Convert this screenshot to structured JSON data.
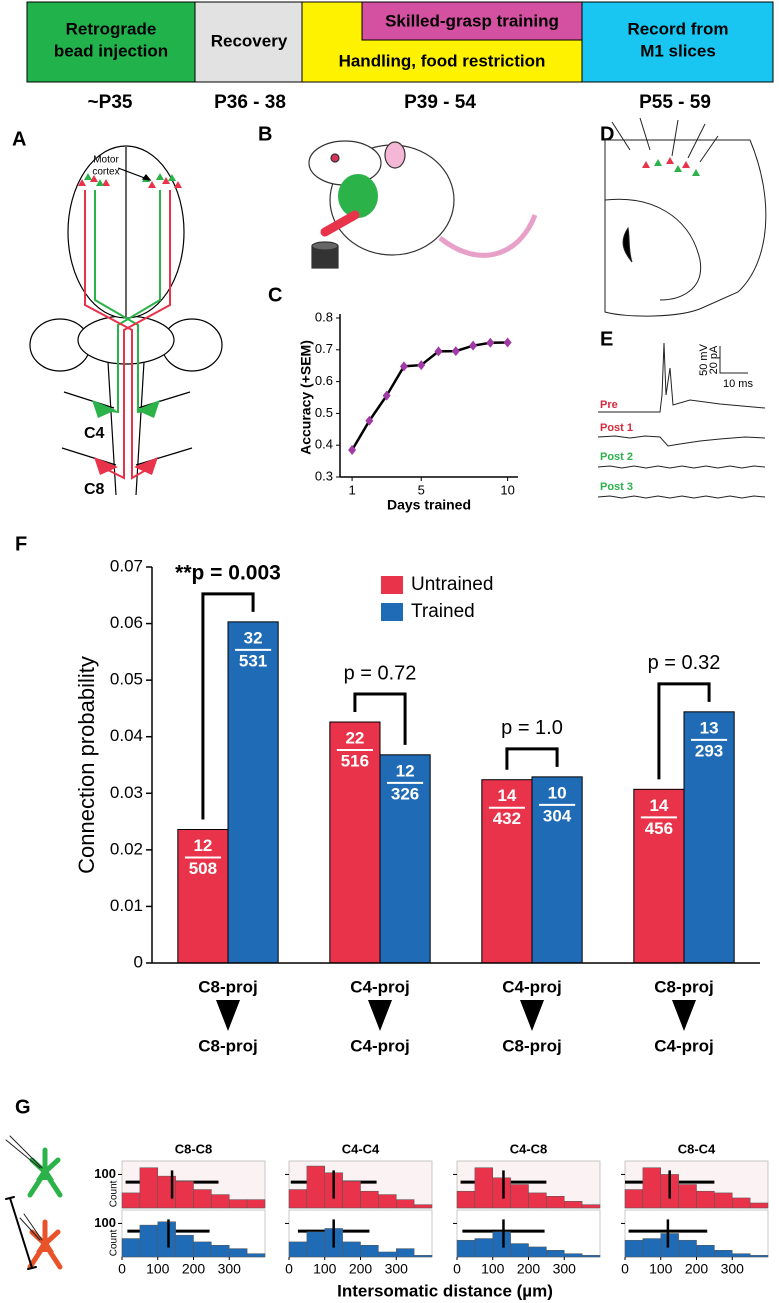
{
  "timeline": {
    "stages": [
      [
        "Retrograde",
        "bead injection"
      ],
      [
        "Recovery"
      ],
      [
        "Skilled-grasp training"
      ],
      [
        "Handling, food restriction"
      ],
      [
        "Record from",
        "M1 slices"
      ]
    ],
    "ages": [
      "~P35",
      "P36 - 38",
      "P39 - 54",
      "P55 - 59"
    ]
  },
  "panel_labels": [
    "A",
    "B",
    "C",
    "D",
    "E",
    "F",
    "G"
  ],
  "panel_a": {
    "region": [
      "Motor",
      "cortex"
    ],
    "segments": [
      "C4",
      "C8"
    ]
  },
  "panel_e": {
    "traces": [
      "Pre",
      "Post 1",
      "Post 2",
      "Post 3"
    ],
    "scale": [
      "50 mV",
      "20 pA",
      "10 ms"
    ]
  },
  "chart_data": [
    {
      "type": "line",
      "xlabel": "Days trained",
      "ylabel": "Accuracy (+SEM)",
      "x": [
        1,
        2,
        3,
        4,
        5,
        6,
        7,
        8,
        9,
        10
      ],
      "values": [
        0.385,
        0.477,
        0.556,
        0.648,
        0.652,
        0.695,
        0.696,
        0.713,
        0.722,
        0.723
      ],
      "color": "#000000",
      "marker_color": "#a23aa6",
      "xlim": [
        0.3,
        10.6
      ],
      "ylim": [
        0.3,
        0.8
      ],
      "xticks": [
        1,
        5,
        10
      ],
      "yticks": [
        0.3,
        0.4,
        0.5,
        0.6,
        0.7,
        0.8
      ]
    },
    {
      "type": "bar",
      "ylabel": "Connection probability",
      "categories": [
        [
          "C8-proj",
          "C8-proj"
        ],
        [
          "C4-proj",
          "C4-proj"
        ],
        [
          "C4-proj",
          "C8-proj"
        ],
        [
          "C8-proj",
          "C4-proj"
        ]
      ],
      "series": [
        {
          "name": "Untrained",
          "color": "#e8334a",
          "values": [
            0.0236,
            0.0426,
            0.0324,
            0.0307
          ],
          "numerators": [
            12,
            22,
            14,
            14
          ],
          "denominators": [
            508,
            516,
            432,
            456
          ]
        },
        {
          "name": "Trained",
          "color": "#1f6bb5",
          "values": [
            0.0603,
            0.0368,
            0.0329,
            0.0444
          ],
          "numerators": [
            32,
            12,
            10,
            13
          ],
          "denominators": [
            531,
            326,
            304,
            293
          ]
        }
      ],
      "annotations": [
        "**p = 0.003",
        "p = 0.72",
        "p = 1.0",
        "p = 0.32"
      ],
      "ylim": [
        0,
        0.07
      ],
      "yticks": [
        0,
        0.01,
        0.02,
        0.03,
        0.04,
        0.05,
        0.06,
        0.07
      ],
      "legend": "upper center"
    },
    {
      "type": "histogram",
      "xlabel": "Intersomatic distance (µm)",
      "ylabel": "Count",
      "bins": [
        0,
        50,
        100,
        150,
        200,
        250,
        300,
        350,
        400
      ],
      "xlim": [
        0,
        400
      ],
      "xticks": [
        0,
        100,
        200,
        300
      ],
      "ylim": [
        0,
        140
      ],
      "yticks": [
        100
      ],
      "colors": [
        "#e8334a",
        "#1f6bb5"
      ],
      "panels": [
        {
          "title": "C8-C8",
          "counts": [
            [
              45,
              120,
              95,
              80,
              55,
              40,
              25,
              25
            ],
            [
              55,
              95,
              105,
              65,
              45,
              35,
              25,
              10
            ]
          ],
          "means": [
            140,
            130
          ],
          "sds": [
            130,
            115
          ]
        },
        {
          "title": "C4-C4",
          "counts": [
            [
              55,
              125,
              105,
              80,
              50,
              40,
              25,
              10
            ],
            [
              45,
              75,
              85,
              45,
              35,
              15,
              25,
              5
            ]
          ],
          "means": [
            125,
            125
          ],
          "sds": [
            120,
            100
          ]
        },
        {
          "title": "C4-C8",
          "counts": [
            [
              50,
              120,
              90,
              70,
              45,
              35,
              20,
              10
            ],
            [
              50,
              55,
              75,
              40,
              30,
              20,
              10,
              5
            ]
          ],
          "means": [
            130,
            130
          ],
          "sds": [
            120,
            115
          ]
        },
        {
          "title": "C8-C4",
          "counts": [
            [
              55,
              120,
              100,
              70,
              50,
              45,
              30,
              15
            ],
            [
              50,
              55,
              70,
              50,
              35,
              20,
              10,
              5
            ]
          ],
          "means": [
            125,
            120
          ],
          "sds": [
            125,
            110
          ]
        }
      ]
    }
  ]
}
